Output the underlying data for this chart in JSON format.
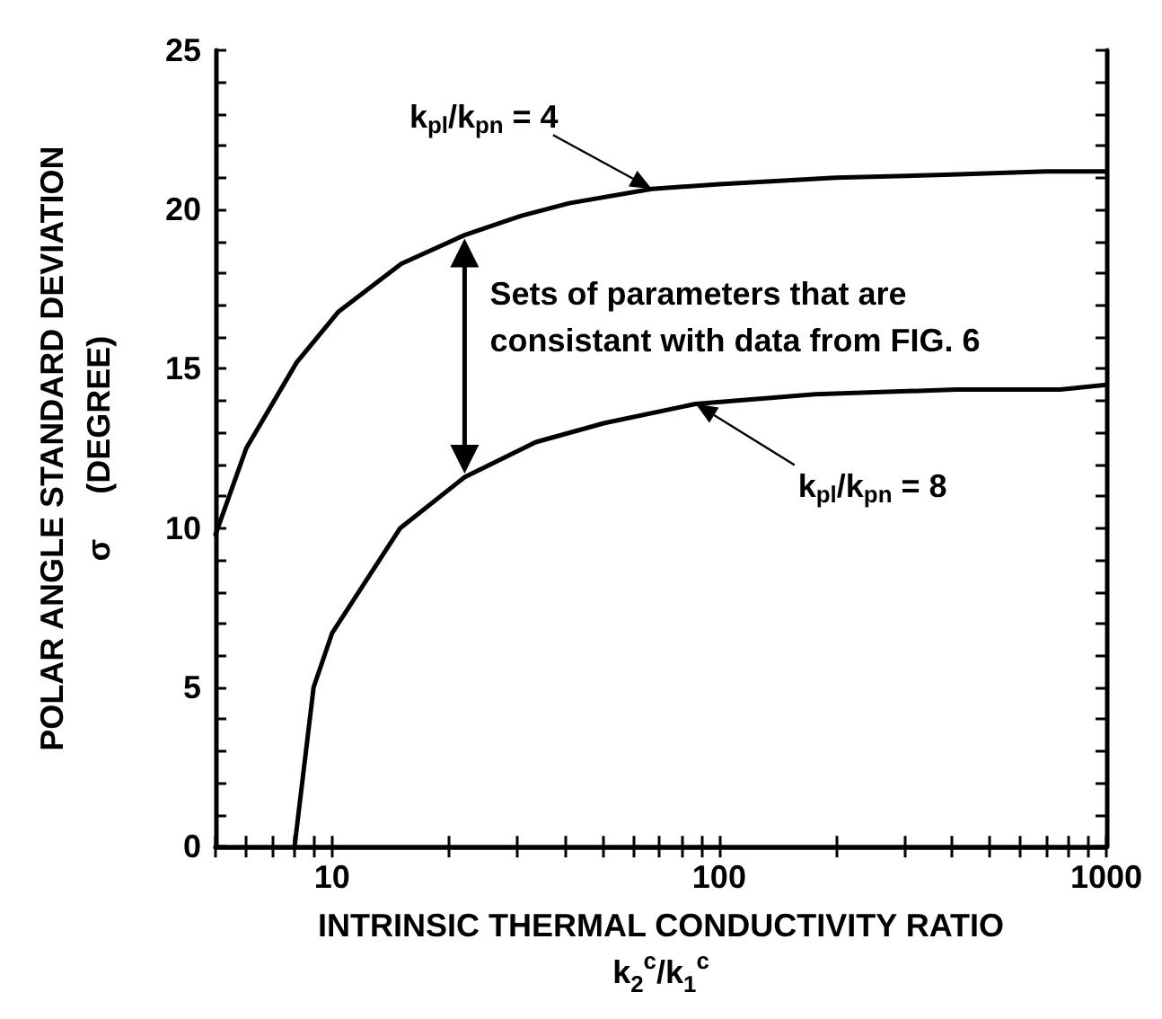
{
  "chart_data": {
    "type": "line",
    "xlabel": "INTRINSIC THERMAL CONDUCTIVITY RATIO\nk$_{2}$$^{c}$/k$_{1}$$^{c}$",
    "ylabel": "POLAR ANGLE STANDARD DEVIATION\nσ     (DEGREE)",
    "log": "x",
    "xlim": [
      5,
      1000
    ],
    "ylim": [
      0,
      25
    ],
    "xticks": [
      {
        "value": 5,
        "label": null
      },
      {
        "value": 6,
        "label": null
      },
      {
        "value": 7,
        "label": null
      },
      {
        "value": 8,
        "label": null
      },
      {
        "value": 9,
        "label": null
      },
      10,
      {
        "value": 20,
        "label": null
      },
      {
        "value": 30,
        "label": null
      },
      {
        "value": 40,
        "label": null
      },
      {
        "value": 50,
        "label": null
      },
      {
        "value": 60,
        "label": null
      },
      {
        "value": 70,
        "label": null
      },
      {
        "value": 80,
        "label": null
      },
      {
        "value": 90,
        "label": null
      },
      100,
      {
        "value": 200,
        "label": null
      },
      {
        "value": 300,
        "label": null
      },
      {
        "value": 400,
        "label": null
      },
      {
        "value": 500,
        "label": null
      },
      {
        "value": 600,
        "label": null
      },
      {
        "value": 700,
        "label": null
      },
      {
        "value": 800,
        "label": null
      },
      {
        "value": 900,
        "label": null
      },
      1000
    ],
    "yticks": [
      0,
      {
        "value": 1,
        "label": null
      },
      {
        "value": 2,
        "label": null
      },
      {
        "value": 3,
        "label": null
      },
      {
        "value": 4,
        "label": null
      },
      5,
      {
        "value": 6,
        "label": null
      },
      {
        "value": 7,
        "label": null
      },
      {
        "value": 8,
        "label": null
      },
      {
        "value": 9,
        "label": null
      },
      10,
      {
        "value": 11,
        "label": null
      },
      {
        "value": 12,
        "label": null
      },
      {
        "value": 13,
        "label": null
      },
      {
        "value": 14,
        "label": null
      },
      15,
      {
        "value": 16,
        "label": null
      },
      {
        "value": 17,
        "label": null
      },
      {
        "value": 18,
        "label": null
      },
      {
        "value": 19,
        "label": null
      },
      20,
      {
        "value": 21,
        "label": null
      },
      {
        "value": 22,
        "label": null
      },
      {
        "value": 23,
        "label": null
      },
      {
        "value": 24,
        "label": null
      },
      25
    ],
    "grid": false,
    "legend": false,
    "marker": "none",
    "line_style": "solid",
    "series": [
      {
        "name": "k$_{pl}$/k$_{pn}$ = 4",
        "color": "#000000",
        "x": [
          5,
          6,
          8.1,
          10.4,
          15.1,
          22,
          30.7,
          41,
          67,
          100,
          200,
          400,
          700,
          1000
        ],
        "values": [
          9.8,
          12.5,
          15.2,
          16.8,
          18.3,
          19.2,
          19.8,
          20.2,
          20.65,
          20.8,
          21.0,
          21.1,
          21.2,
          21.2
        ]
      },
      {
        "name": "k$_{pl}$/k$_{pn}$ = 8",
        "color": "#000000",
        "x": [
          8,
          8.96,
          10,
          15,
          22,
          33.6,
          50.6,
          87,
          177,
          410,
          760,
          1000
        ],
        "values": [
          0,
          5,
          6.7,
          10,
          11.6,
          12.7,
          13.3,
          13.9,
          14.2,
          14.35,
          14.35,
          14.5
        ]
      }
    ],
    "annotations": [
      "Sets of parameters that are\nconsistant with data from FIG. 6"
    ]
  }
}
